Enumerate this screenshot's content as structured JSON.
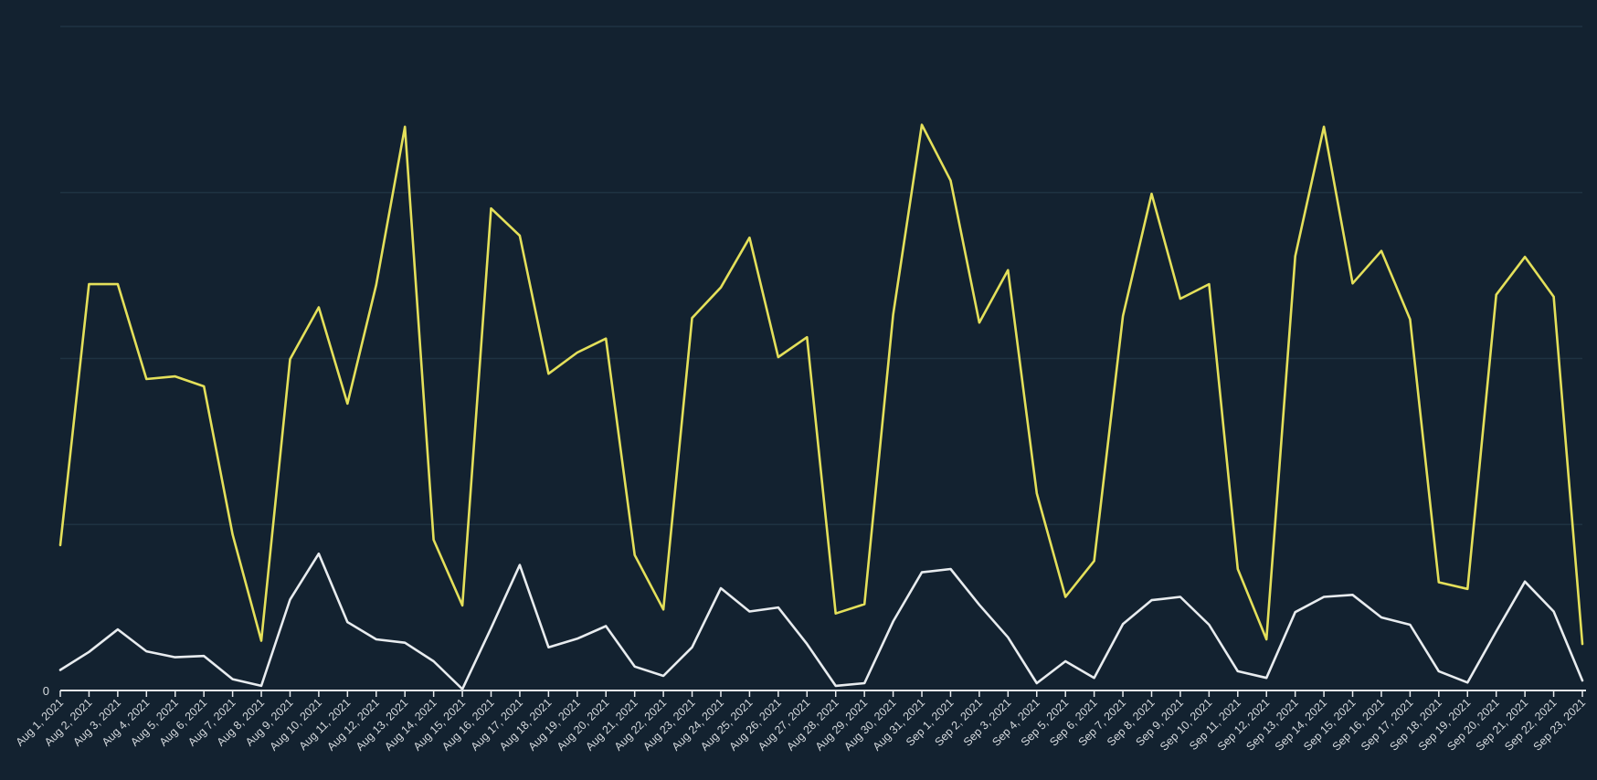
{
  "chart_data": {
    "type": "line",
    "x": [
      "Aug 1, 2021",
      "Aug 2, 2021",
      "Aug 3, 2021",
      "Aug 4, 2021",
      "Aug 5, 2021",
      "Aug 6, 2021",
      "Aug 7, 2021",
      "Aug 8, 2021",
      "Aug 9, 2021",
      "Aug 10, 2021",
      "Aug 11, 2021",
      "Aug 12, 2021",
      "Aug 13, 2021",
      "Aug 14, 2021",
      "Aug 15, 2021",
      "Aug 16, 2021",
      "Aug 17, 2021",
      "Aug 18, 2021",
      "Aug 19, 2021",
      "Aug 20, 2021",
      "Aug 21, 2021",
      "Aug 22, 2021",
      "Aug 23, 2021",
      "Aug 24, 2021",
      "Aug 25, 2021",
      "Aug 26, 2021",
      "Aug 27, 2021",
      "Aug 28, 2021",
      "Aug 29, 2021",
      "Aug 30, 2021",
      "Aug 31, 2021",
      "Sep 1, 2021",
      "Sep 2, 2021",
      "Sep 3, 2021",
      "Sep 4, 2021",
      "Sep 5, 2021",
      "Sep 6, 2021",
      "Sep 7, 2021",
      "Sep 8, 2021",
      "Sep 9, 2021",
      "Sep 10, 2021",
      "Sep 11, 2021",
      "Sep 12, 2021",
      "Sep 13, 2021",
      "Sep 14, 2021",
      "Sep 15, 2021",
      "Sep 16, 2021",
      "Sep 17, 2021",
      "Sep 18, 2021",
      "Sep 19, 2021",
      "Sep 20, 2021",
      "Sep 21, 2021",
      "Sep 22, 2021",
      "Sep 23, 2021"
    ],
    "y_ticks": [
      "0"
    ],
    "ylim": [
      0,
      100
    ],
    "grid": true,
    "series": [
      {
        "color": "#e4e05a",
        "values": [
          21.9,
          61.2,
          61.2,
          46.9,
          47.3,
          45.8,
          23.5,
          7.5,
          49.9,
          57.7,
          43.2,
          61.1,
          84.9,
          22.7,
          12.8,
          72.6,
          68.5,
          47.7,
          50.9,
          53.0,
          20.4,
          12.2,
          56.1,
          60.7,
          68.2,
          50.2,
          53.2,
          11.6,
          13.0,
          56.6,
          85.2,
          76.8,
          55.4,
          63.3,
          29.7,
          14.1,
          19.5,
          56.4,
          74.8,
          59.0,
          61.2,
          18.3,
          7.7,
          65.4,
          84.9,
          61.3,
          66.2,
          55.9,
          16.3,
          15.3,
          59.6,
          65.3,
          59.3,
          7.0
        ]
      },
      {
        "color": "#e8ecef",
        "values": [
          3.1,
          5.8,
          9.2,
          5.9,
          5.0,
          5.2,
          1.7,
          0.7,
          13.7,
          20.6,
          10.3,
          7.7,
          7.2,
          4.4,
          0.2,
          9.4,
          18.9,
          6.5,
          7.8,
          9.7,
          3.6,
          2.2,
          6.5,
          15.4,
          11.9,
          12.5,
          7.0,
          0.7,
          1.1,
          10.4,
          17.8,
          18.3,
          12.9,
          8.0,
          1.1,
          4.4,
          1.9,
          10.0,
          13.6,
          14.1,
          9.9,
          2.9,
          1.9,
          11.8,
          14.1,
          14.4,
          11.0,
          9.9,
          2.9,
          1.2,
          8.9,
          16.4,
          11.9,
          1.5
        ]
      }
    ]
  }
}
